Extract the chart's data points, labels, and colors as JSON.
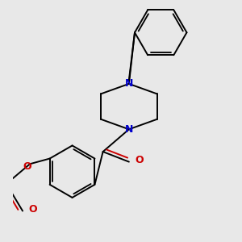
{
  "background_color": "#e8e8e8",
  "bond_color": "#000000",
  "nitrogen_color": "#0000cc",
  "oxygen_color": "#cc0000",
  "lw": 1.4,
  "figsize": [
    3.0,
    3.0
  ],
  "dpi": 100,
  "xlim": [
    -2.5,
    3.5
  ],
  "ylim": [
    -3.5,
    3.2
  ]
}
